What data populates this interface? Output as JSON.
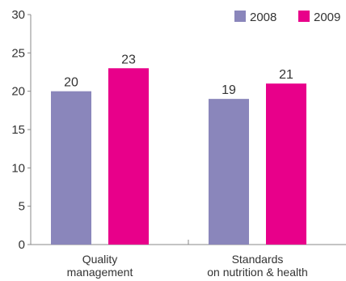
{
  "chart_data": {
    "type": "bar",
    "categories": [
      [
        "Quality",
        "management"
      ],
      [
        "Standards",
        "on nutrition & health"
      ]
    ],
    "series": [
      {
        "name": "2008",
        "values": [
          20,
          19
        ],
        "color": "#8a86bb"
      },
      {
        "name": "2009",
        "values": [
          23,
          21
        ],
        "color": "#e8008a"
      }
    ],
    "y_ticks": [
      "0",
      "5",
      "10",
      "15",
      "20",
      "25",
      "30"
    ],
    "ylim": [
      0,
      30
    ],
    "grid": false,
    "legend_position": "top-right",
    "title": "",
    "xlabel": "",
    "ylabel": ""
  }
}
